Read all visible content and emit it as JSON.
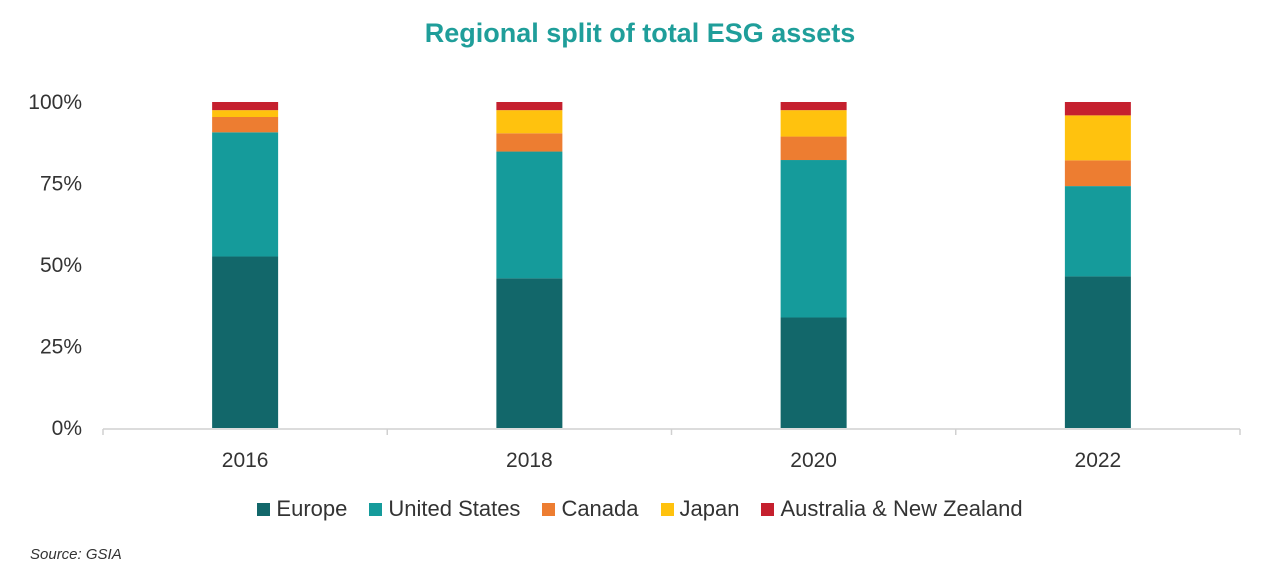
{
  "source": "Source: GSIA",
  "chart_data": {
    "type": "bar",
    "stacked": true,
    "title": "Regional split of total ESG assets",
    "categories": [
      "2016",
      "2018",
      "2020",
      "2022"
    ],
    "yticks": [
      "0%",
      "25%",
      "50%",
      "75%",
      "100%"
    ],
    "ylim": [
      0,
      100
    ],
    "grid": false,
    "legend_position": "bottom",
    "series": [
      {
        "name": "Europe",
        "color": "#12676a",
        "values": [
          52.6,
          45.9,
          33.9,
          46.5
        ]
      },
      {
        "name": "United States",
        "color": "#159b9b",
        "values": [
          38.1,
          38.9,
          48.3,
          27.7
        ]
      },
      {
        "name": "Canada",
        "color": "#ed7d31",
        "values": [
          4.7,
          5.6,
          7.2,
          7.9
        ]
      },
      {
        "name": "Japan",
        "color": "#ffc20e",
        "values": [
          2.1,
          7.1,
          8.1,
          13.8
        ]
      },
      {
        "name": "Australia & New Zealand",
        "color": "#c5202e",
        "values": [
          2.5,
          2.5,
          2.5,
          4.1
        ]
      }
    ]
  }
}
